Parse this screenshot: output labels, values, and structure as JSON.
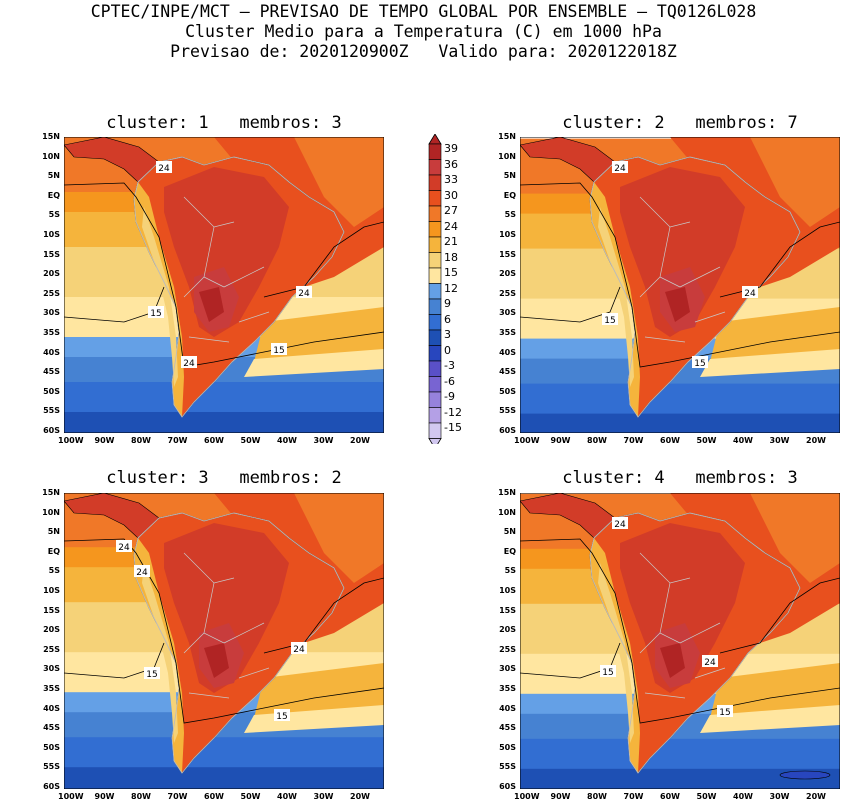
{
  "header": {
    "line1": "CPTEC/INPE/MCT – PREVISAO DE TEMPO GLOBAL POR ENSEMBLE – TQ0126L028",
    "line2": "Cluster Medio para a Temperatura (C) em 1000 hPa",
    "line3": "Previsao de: 2020120900Z   Valido para: 2020122018Z"
  },
  "panels": [
    {
      "title": "cluster: 1   membros: 3",
      "contour_labels": [
        "24",
        "24",
        "15",
        "24",
        "15"
      ]
    },
    {
      "title": "cluster: 2   membros: 7",
      "contour_labels": [
        "24",
        "24",
        "15",
        "15"
      ]
    },
    {
      "title": "cluster: 3   membros: 2",
      "contour_labels": [
        "24",
        "24",
        "24",
        "15",
        "15"
      ]
    },
    {
      "title": "cluster: 4   membros: 3",
      "contour_labels": [
        "24",
        "24",
        "15",
        "15"
      ]
    }
  ],
  "axes": {
    "lat_labels": [
      "15N",
      "10N",
      "5N",
      "EQ",
      "5S",
      "10S",
      "15S",
      "20S",
      "25S",
      "30S",
      "35S",
      "40S",
      "45S",
      "50S",
      "55S",
      "60S"
    ],
    "lon_labels": [
      "100W",
      "90W",
      "80W",
      "70W",
      "60W",
      "50W",
      "40W",
      "30W",
      "20W"
    ]
  },
  "colorbar": {
    "labels": [
      "39",
      "36",
      "33",
      "30",
      "27",
      "24",
      "21",
      "18",
      "15",
      "12",
      "9",
      "6",
      "3",
      "0",
      "-3",
      "-6",
      "-9",
      "-12",
      "-15"
    ],
    "colors": [
      "#b02424",
      "#c83c3c",
      "#d23c28",
      "#e8501e",
      "#f07828",
      "#f5961e",
      "#f5b43c",
      "#f5d278",
      "#ffe6a0",
      "#64a0e6",
      "#4682d2",
      "#326ed2",
      "#1e50b4",
      "#2846be",
      "#5a50c8",
      "#7864d2",
      "#9682dc",
      "#b4a0e6",
      "#d2c8f0"
    ]
  }
}
